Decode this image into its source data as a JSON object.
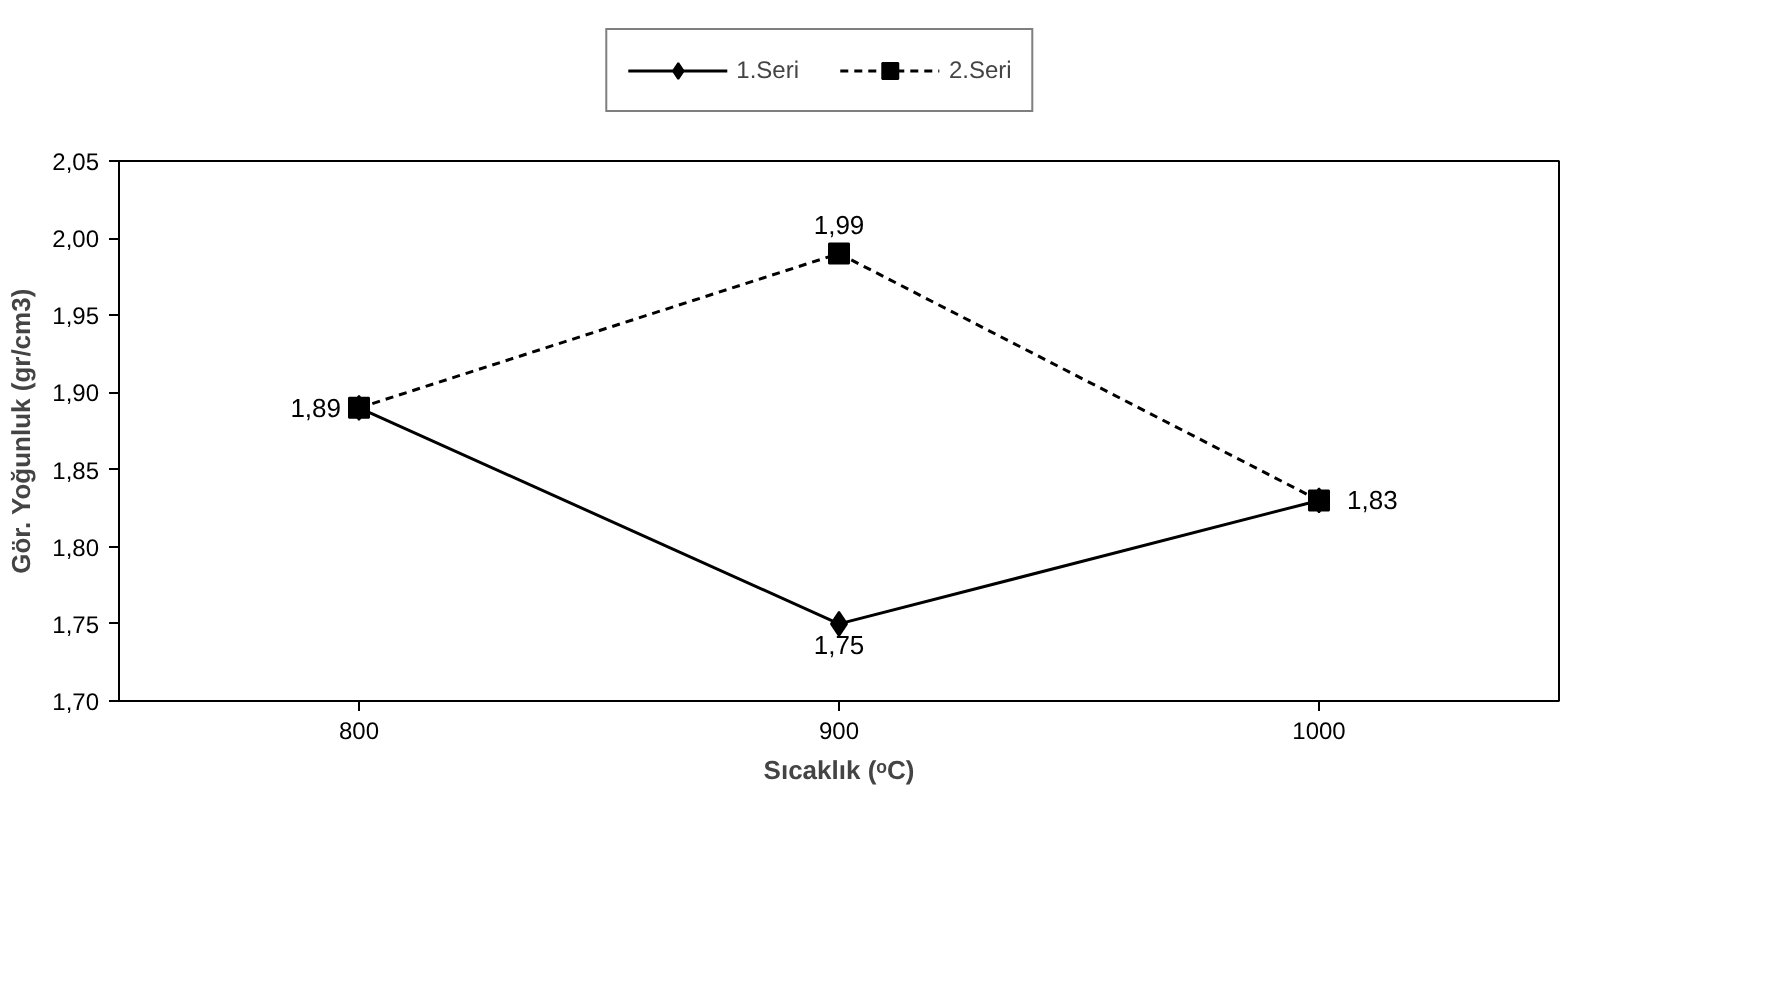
{
  "chart_data": {
    "type": "line",
    "xlabel": "Sıcaklık (ᵒC)",
    "ylabel": "Gör. Yoğunluk (gr/cm3)",
    "categories": [
      "800",
      "900",
      "1000"
    ],
    "series": [
      {
        "name": "1.Seri",
        "color": "#000000",
        "marker": "diamond",
        "line_style": "solid",
        "values": [
          1.89,
          1.75,
          1.83
        ],
        "value_labels": [
          "1,89",
          "1,75",
          "1,83"
        ]
      },
      {
        "name": "2.Seri",
        "color": "#000000",
        "marker": "square",
        "line_style": "dashed",
        "values": [
          1.89,
          1.99,
          1.83
        ],
        "value_labels": [
          null,
          "1,99",
          null
        ]
      }
    ],
    "ylim": [
      1.7,
      2.05
    ],
    "yticks": [
      {
        "value": 1.7,
        "label": "1,70"
      },
      {
        "value": 1.75,
        "label": "1,75"
      },
      {
        "value": 1.8,
        "label": "1,80"
      },
      {
        "value": 1.85,
        "label": "1,85"
      },
      {
        "value": 1.9,
        "label": "1,90"
      },
      {
        "value": 1.95,
        "label": "1,95"
      },
      {
        "value": 2.0,
        "label": "2,00"
      },
      {
        "value": 2.05,
        "label": "2,05"
      }
    ],
    "grid": false,
    "legend": "top"
  }
}
